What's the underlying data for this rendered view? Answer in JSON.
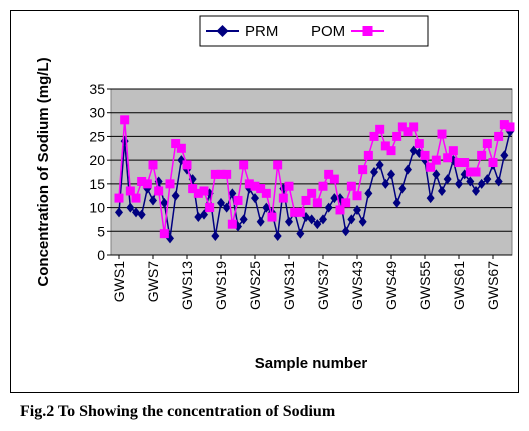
{
  "caption": "Fig.2 To Showing the concentration of Sodium",
  "chart_data": {
    "type": "line",
    "title": "",
    "xlabel": "Sample number",
    "ylabel": "Concentration of Sodium (mg/L)",
    "ylim": [
      0,
      35
    ],
    "yticks": [
      0,
      5,
      10,
      15,
      20,
      25,
      30,
      35
    ],
    "grid": "horizontal",
    "plot_background": "#c0c0c0",
    "legend_position": "top",
    "x_tick_labels": [
      "GWS1",
      "GWS7",
      "GWS13",
      "GWS19",
      "GWS25",
      "GWS31",
      "GWS37",
      "GWS43",
      "GWS49",
      "GWS55",
      "GWS61",
      "GWS67"
    ],
    "series": [
      {
        "name": "PRM",
        "color": "#000080",
        "marker": "diamond",
        "values": [
          9,
          24,
          10,
          9,
          8.5,
          14,
          11.5,
          15.5,
          11,
          3.5,
          12.5,
          20,
          18,
          16,
          8,
          8.5,
          13,
          4,
          11,
          10,
          13,
          6,
          7.5,
          14,
          12,
          7,
          10,
          9,
          4,
          14,
          7,
          9,
          4.5,
          8,
          7.5,
          6.5,
          7.5,
          10,
          12,
          12,
          5,
          7.5,
          9.5,
          7,
          13,
          17.5,
          19,
          15,
          17,
          11,
          14,
          18,
          22,
          21.5,
          20,
          12,
          17,
          13.5,
          16,
          20,
          15,
          17,
          15.5,
          13.5,
          15,
          16,
          19,
          15.5,
          21,
          26
        ]
      },
      {
        "name": "POM",
        "color": "#ff00ff",
        "marker": "square",
        "values": [
          12,
          28.5,
          13.5,
          12,
          15.5,
          15,
          19,
          13.5,
          4.5,
          15,
          23.5,
          22.5,
          19,
          14,
          13,
          13.5,
          10,
          17,
          17,
          17,
          6.5,
          11.5,
          19,
          15,
          14.5,
          14,
          13,
          8,
          19,
          12,
          14.5,
          9,
          9,
          11.5,
          13,
          11,
          14.5,
          17,
          16,
          9.5,
          11,
          14.5,
          12.5,
          18,
          21,
          25,
          26.5,
          23,
          22,
          25,
          27,
          26,
          27,
          23.5,
          21,
          18.5,
          20,
          25.5,
          20.5,
          22,
          19.5,
          19.5,
          17.5,
          17.5,
          21,
          23.5,
          19.5,
          25,
          27.5,
          27
        ]
      }
    ]
  }
}
